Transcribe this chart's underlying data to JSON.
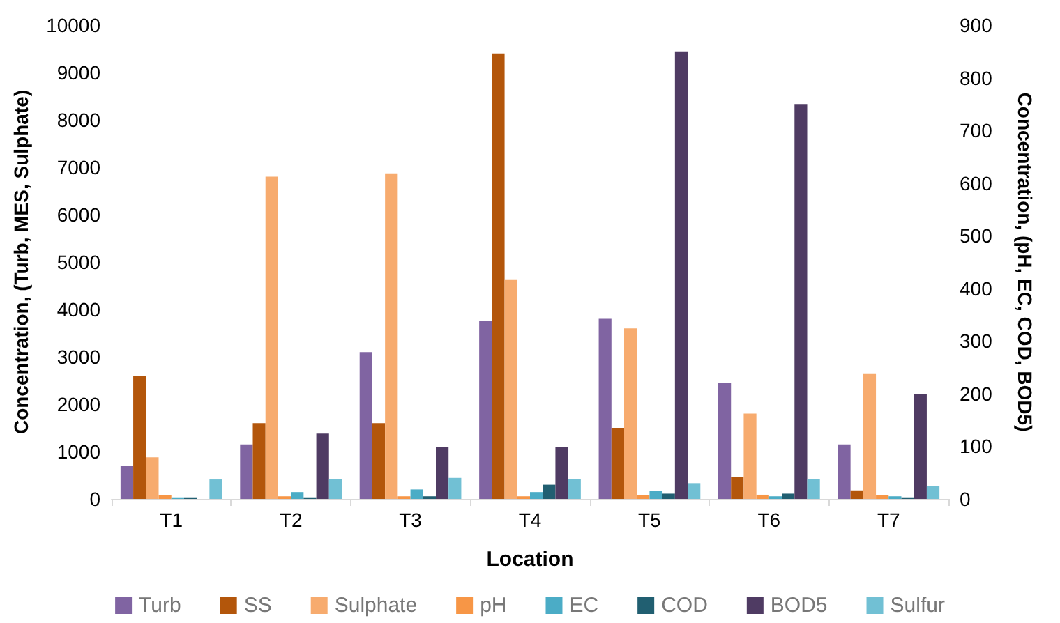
{
  "chart_data": {
    "type": "bar",
    "xlabel": "Location",
    "ylabel": "Concentration, (Turb, MES, Sulphate)",
    "y2label": "Concentration, (pH, EC, COD, BOD5)",
    "categories": [
      "T1",
      "T2",
      "T3",
      "T4",
      "T5",
      "T6",
      "T7"
    ],
    "series": [
      {
        "name": "Turb",
        "color": "#8064a2",
        "values": [
          700,
          1150,
          3100,
          3750,
          3800,
          2450,
          1150
        ]
      },
      {
        "name": "SS",
        "color": "#b3560b",
        "values": [
          2600,
          1600,
          1600,
          9400,
          1500,
          470,
          180
        ]
      },
      {
        "name": "Sulphate",
        "color": "#f7ab6e",
        "values": [
          880,
          6800,
          6870,
          4620,
          3600,
          1800,
          2650
        ]
      },
      {
        "name": "pH",
        "color": "#f79646",
        "axis": "y2",
        "values": [
          7,
          5,
          5,
          5,
          7,
          8,
          7
        ]
      },
      {
        "name": "EC",
        "color": "#4bacc6",
        "axis": "y2",
        "values": [
          3,
          13,
          18,
          13,
          15,
          5,
          5
        ]
      },
      {
        "name": "COD",
        "color": "#215f71",
        "axis": "y2",
        "values": [
          3,
          3,
          5,
          27,
          10,
          10,
          3
        ]
      },
      {
        "name": "BOD5",
        "color": "#4f3b63",
        "axis": "y2",
        "values": [
          0,
          124,
          98,
          98,
          850,
          750,
          200
        ]
      },
      {
        "name": "Sulfur",
        "color": "#71c0d4",
        "axis": "y2",
        "values": [
          37,
          38,
          40,
          38,
          30,
          38,
          25
        ]
      }
    ],
    "ylim": [
      0,
      10000
    ],
    "yticks": [
      0,
      1000,
      2000,
      3000,
      4000,
      5000,
      6000,
      7000,
      8000,
      9000,
      10000
    ],
    "y2lim": [
      0,
      900
    ],
    "y2ticks": [
      0,
      100,
      200,
      300,
      400,
      500,
      600,
      700,
      800,
      900
    ],
    "grid": false,
    "legend": "bottom"
  }
}
